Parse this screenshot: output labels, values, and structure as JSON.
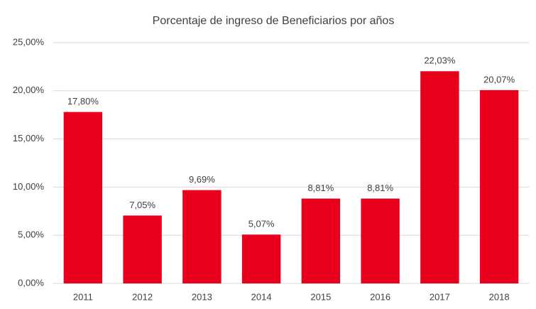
{
  "chart_data": {
    "type": "bar",
    "title": "Porcentaje de ingreso de Beneficiarios por años",
    "categories": [
      "2011",
      "2012",
      "2013",
      "2014",
      "2015",
      "2016",
      "2017",
      "2018"
    ],
    "values": [
      17.8,
      7.05,
      9.69,
      5.07,
      8.81,
      8.81,
      22.03,
      20.07
    ],
    "value_labels": [
      "17,80%",
      "7,05%",
      "9,69%",
      "5,07%",
      "8,81%",
      "8,81%",
      "22,03%",
      "20,07%"
    ],
    "color": "#e8001c",
    "ylim": [
      0,
      25
    ],
    "yticks": [
      {
        "value": 0,
        "label": "0,00%"
      },
      {
        "value": 5,
        "label": "5,00%"
      },
      {
        "value": 10,
        "label": "10,00%"
      },
      {
        "value": 15,
        "label": "15,00%"
      },
      {
        "value": 20,
        "label": "20,00%"
      },
      {
        "value": 25,
        "label": "25,00%"
      }
    ],
    "grid": true
  }
}
